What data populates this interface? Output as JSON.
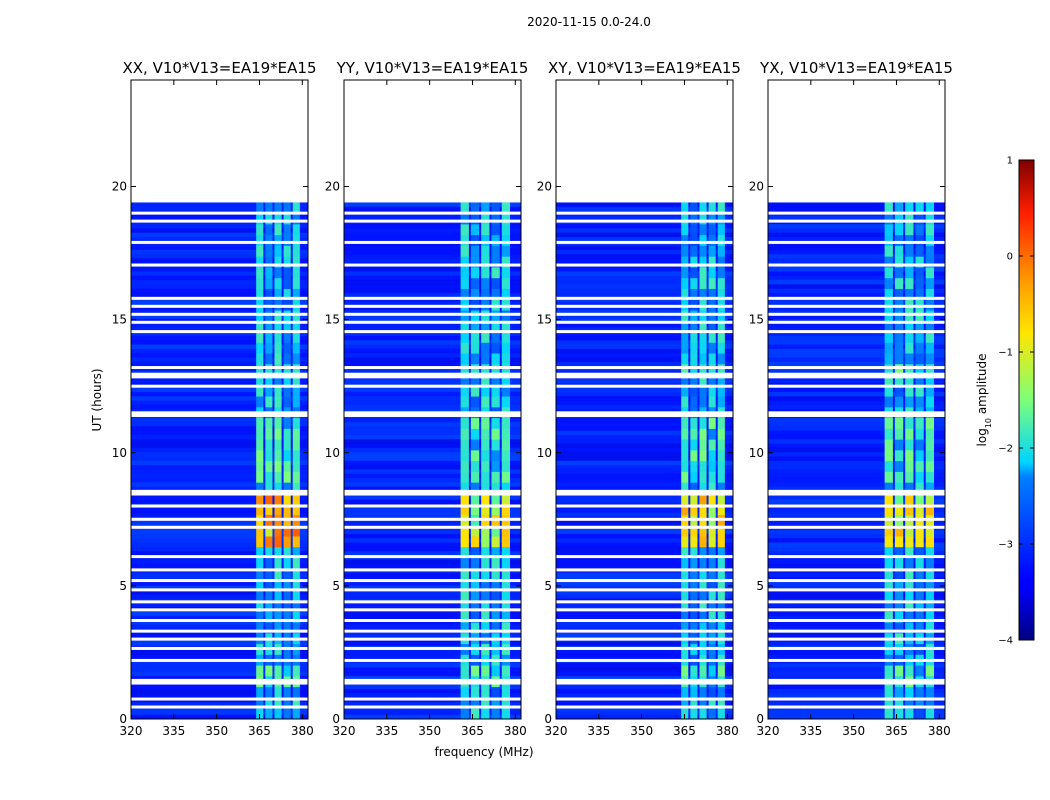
{
  "chart_data": {
    "type": "heatmap",
    "suptitle": "2020-11-15 0.0-24.0",
    "xlabel": "frequency (MHz)",
    "ylabel": "UT (hours)",
    "xlim": [
      320,
      382
    ],
    "ylim": [
      0,
      24
    ],
    "xticks": [
      320,
      335,
      350,
      365,
      380
    ],
    "yticks": [
      0,
      5,
      10,
      15,
      20
    ],
    "data_end_hour": 19.4,
    "panels": [
      {
        "title": "XX, V10*V13=EA19*EA15",
        "polarization": "XX",
        "rfi_band_mhz": [
          363.5,
          379.5
        ],
        "rfi_peak_log_amp": 0.1
      },
      {
        "title": "YY, V10*V13=EA19*EA15",
        "polarization": "YY",
        "rfi_band_mhz": [
          360.5,
          378.5
        ],
        "rfi_peak_log_amp": -0.5
      },
      {
        "title": "XY, V10*V13=EA19*EA15",
        "polarization": "XY",
        "rfi_band_mhz": [
          363.5,
          379.5
        ],
        "rfi_peak_log_amp": -0.3
      },
      {
        "title": "YX, V10*V13=EA19*EA15",
        "polarization": "YX",
        "rfi_band_mhz": [
          360.5,
          378.5
        ],
        "rfi_peak_log_amp": -0.4
      }
    ],
    "flagged_hours": [
      19.0,
      18.7,
      17.9,
      17.05,
      15.8,
      15.5,
      15.2,
      14.9,
      14.55,
      13.2,
      12.95,
      12.85,
      12.5,
      11.5,
      11.4,
      8.55,
      8.45,
      8.0,
      7.5,
      7.2,
      6.1,
      5.6,
      5.2,
      4.85,
      4.4,
      4.1,
      3.7,
      3.3,
      3.0,
      2.65,
      2.2,
      1.45,
      1.35,
      0.75,
      0.45
    ],
    "colorbar": {
      "label": "log10 amplitude",
      "label_main": "log",
      "label_sub": "10",
      "label_rest": " amplitude",
      "range": [
        -4,
        1
      ],
      "ticks": [
        -4,
        -3,
        -2,
        -1,
        0,
        1
      ],
      "tick_labels": [
        "−4",
        "−3",
        "−2",
        "−1",
        "0",
        "1"
      ]
    }
  }
}
